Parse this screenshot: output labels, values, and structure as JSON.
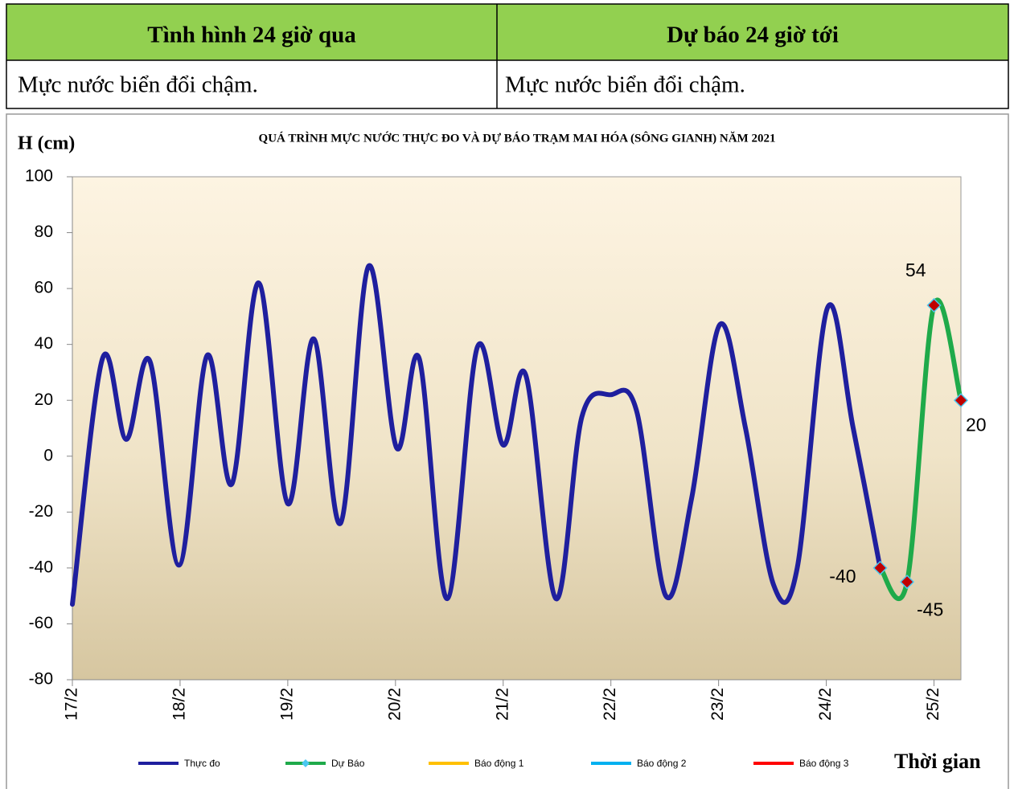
{
  "header": {
    "columns": [
      "Tình hình 24 giờ qua",
      "Dự báo 24 giờ tới"
    ],
    "cells": [
      "Mực nước biển đổi chậm.",
      "Mực nước biển đổi chậm."
    ]
  },
  "chart_data": {
    "type": "line",
    "title": "QUÁ TRÌNH MỰC NƯỚC THỰC ĐO VÀ DỰ BÁO TRẠM MAI HÓA (SÔNG GIANH) NĂM  2021",
    "ylabel": "H (cm)",
    "xlabel": "Thời gian",
    "xlim": [
      0,
      8.25
    ],
    "ylim": [
      -80,
      100
    ],
    "yticks": [
      -80,
      -60,
      -40,
      -20,
      0,
      20,
      40,
      60,
      80,
      100
    ],
    "xticks": [
      {
        "value": 0,
        "label": "17/2"
      },
      {
        "value": 1,
        "label": "18/2"
      },
      {
        "value": 2,
        "label": "19/2"
      },
      {
        "value": 3,
        "label": "20/2"
      },
      {
        "value": 4,
        "label": "21/2"
      },
      {
        "value": 5,
        "label": "22/2"
      },
      {
        "value": 6,
        "label": "23/2"
      },
      {
        "value": 7,
        "label": "24/2"
      },
      {
        "value": 8,
        "label": "25/2"
      }
    ],
    "series": [
      {
        "name": "Thực đo",
        "color": "#1f1f9e",
        "x": [
          0,
          0.28,
          0.5,
          0.72,
          0.99,
          1.25,
          1.48,
          1.73,
          2.0,
          2.24,
          2.49,
          2.75,
          3.01,
          3.22,
          3.48,
          3.76,
          4.0,
          4.21,
          4.49,
          4.73,
          5.0,
          5.24,
          5.51,
          5.75,
          6.01,
          6.25,
          6.51,
          6.73,
          7.01,
          7.25,
          7.5
        ],
        "values": [
          -53,
          35,
          6,
          34,
          -39,
          36,
          -10,
          62,
          -17,
          42,
          -24,
          68,
          3,
          35,
          -51,
          39,
          4,
          29,
          -51,
          14,
          22,
          16,
          -50,
          -15,
          47,
          10,
          -46,
          -40,
          53,
          10,
          -40
        ]
      },
      {
        "name": "Dự Báo",
        "color": "#1faa4a",
        "marker_color": "#c00000",
        "marker_edge": "#4bc8f0",
        "data_labels": true,
        "x": [
          7.5,
          7.75,
          8.0,
          8.25
        ],
        "values": [
          -40,
          -45,
          54,
          20
        ]
      },
      {
        "name": "Báo động 1",
        "color": "#ffc000"
      },
      {
        "name": "Báo động 2",
        "color": "#00b0f0"
      },
      {
        "name": "Báo động 3",
        "color": "#ff0000"
      }
    ]
  }
}
